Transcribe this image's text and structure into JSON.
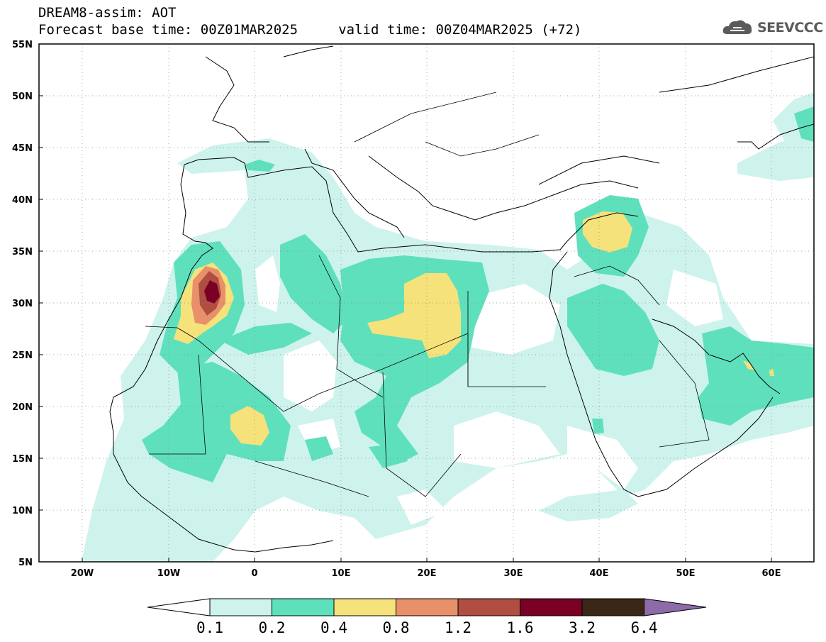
{
  "header": {
    "title_line1": "DREAM8-assim: AOT",
    "title_line2": "Forecast base time: 00Z01MAR2025     valid time: 00Z04MAR2025 (+72)",
    "logo_text": "SEEVCCC"
  },
  "map": {
    "variable": "AOT",
    "lon_labels": [
      "20W",
      "10W",
      "0",
      "10E",
      "20E",
      "30E",
      "40E",
      "50E",
      "60E"
    ],
    "lat_labels": [
      "55N",
      "50N",
      "45N",
      "40N",
      "35N",
      "30N",
      "25N",
      "20N",
      "15N",
      "10N",
      "5N"
    ],
    "grid": true
  },
  "legend": {
    "labels": [
      "0.1",
      "0.2",
      "0.4",
      "0.8",
      "1.2",
      "1.6",
      "3.2",
      "6.4"
    ],
    "colors": [
      "#ffffff",
      "#cdf3ec",
      "#5fe0bc",
      "#f5e27a",
      "#e8906a",
      "#b04e42",
      "#7a0026",
      "#3a2717",
      "#8d6aa8"
    ]
  }
}
